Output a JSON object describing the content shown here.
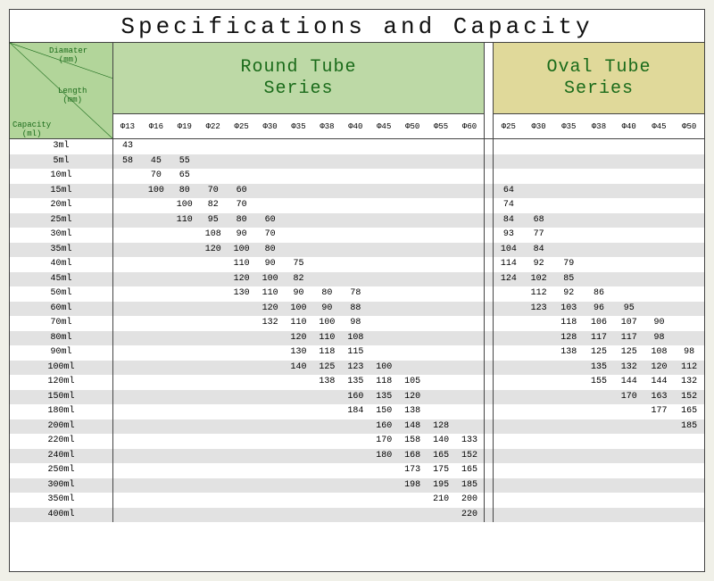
{
  "title": "Specifications and Capacity",
  "corner": {
    "diameter": "Diamater\n(mm)",
    "length": "Length\n(mm)",
    "capacity": "Capacity\n(ml)"
  },
  "round": {
    "title1": "Round Tube",
    "title2": "Series",
    "diameters": [
      "Φ13",
      "Φ16",
      "Φ19",
      "Φ22",
      "Φ25",
      "Φ30",
      "Φ35",
      "Φ38",
      "Φ40",
      "Φ45",
      "Φ50",
      "Φ55",
      "Φ60"
    ]
  },
  "oval": {
    "title1": "Oval Tube",
    "title2": "Series",
    "diameters": [
      "Φ25",
      "Φ30",
      "Φ35",
      "Φ38",
      "Φ40",
      "Φ45",
      "Φ50"
    ]
  },
  "capacities": [
    "3ml",
    "5ml",
    "10ml",
    "15ml",
    "20ml",
    "25ml",
    "30ml",
    "35ml",
    "40ml",
    "45ml",
    "50ml",
    "60ml",
    "70ml",
    "80ml",
    "90ml",
    "100ml",
    "120ml",
    "150ml",
    "180ml",
    "200ml",
    "220ml",
    "240ml",
    "250ml",
    "300ml",
    "350ml",
    "400ml"
  ],
  "round_data": [
    [
      "43",
      "",
      "",
      "",
      "",
      "",
      "",
      "",
      "",
      "",
      "",
      "",
      ""
    ],
    [
      "58",
      "45",
      "55",
      "",
      "",
      "",
      "",
      "",
      "",
      "",
      "",
      "",
      ""
    ],
    [
      "",
      "70",
      "65",
      "",
      "",
      "",
      "",
      "",
      "",
      "",
      "",
      "",
      ""
    ],
    [
      "",
      "100",
      "80",
      "70",
      "60",
      "",
      "",
      "",
      "",
      "",
      "",
      "",
      ""
    ],
    [
      "",
      "",
      "100",
      "82",
      "70",
      "",
      "",
      "",
      "",
      "",
      "",
      "",
      ""
    ],
    [
      "",
      "",
      "110",
      "95",
      "80",
      "60",
      "",
      "",
      "",
      "",
      "",
      "",
      ""
    ],
    [
      "",
      "",
      "",
      "108",
      "90",
      "70",
      "",
      "",
      "",
      "",
      "",
      "",
      ""
    ],
    [
      "",
      "",
      "",
      "120",
      "100",
      "80",
      "",
      "",
      "",
      "",
      "",
      "",
      ""
    ],
    [
      "",
      "",
      "",
      "",
      "110",
      "90",
      "75",
      "",
      "",
      "",
      "",
      "",
      ""
    ],
    [
      "",
      "",
      "",
      "",
      "120",
      "100",
      "82",
      "",
      "",
      "",
      "",
      "",
      ""
    ],
    [
      "",
      "",
      "",
      "",
      "130",
      "110",
      "90",
      "80",
      "78",
      "",
      "",
      "",
      ""
    ],
    [
      "",
      "",
      "",
      "",
      "",
      "120",
      "100",
      "90",
      "88",
      "",
      "",
      "",
      ""
    ],
    [
      "",
      "",
      "",
      "",
      "",
      "132",
      "110",
      "100",
      "98",
      "",
      "",
      "",
      ""
    ],
    [
      "",
      "",
      "",
      "",
      "",
      "",
      "120",
      "110",
      "108",
      "",
      "",
      "",
      ""
    ],
    [
      "",
      "",
      "",
      "",
      "",
      "",
      "130",
      "118",
      "115",
      "",
      "",
      "",
      ""
    ],
    [
      "",
      "",
      "",
      "",
      "",
      "",
      "140",
      "125",
      "123",
      "100",
      "",
      "",
      ""
    ],
    [
      "",
      "",
      "",
      "",
      "",
      "",
      "",
      "138",
      "135",
      "118",
      "105",
      "",
      ""
    ],
    [
      "",
      "",
      "",
      "",
      "",
      "",
      "",
      "",
      "160",
      "135",
      "120",
      "",
      ""
    ],
    [
      "",
      "",
      "",
      "",
      "",
      "",
      "",
      "",
      "184",
      "150",
      "138",
      "",
      ""
    ],
    [
      "",
      "",
      "",
      "",
      "",
      "",
      "",
      "",
      "",
      "160",
      "148",
      "128",
      ""
    ],
    [
      "",
      "",
      "",
      "",
      "",
      "",
      "",
      "",
      "",
      "170",
      "158",
      "140",
      "133"
    ],
    [
      "",
      "",
      "",
      "",
      "",
      "",
      "",
      "",
      "",
      "180",
      "168",
      "165",
      "152"
    ],
    [
      "",
      "",
      "",
      "",
      "",
      "",
      "",
      "",
      "",
      "",
      "173",
      "175",
      "165"
    ],
    [
      "",
      "",
      "",
      "",
      "",
      "",
      "",
      "",
      "",
      "",
      "198",
      "195",
      "185"
    ],
    [
      "",
      "",
      "",
      "",
      "",
      "",
      "",
      "",
      "",
      "",
      "",
      "210",
      "200"
    ],
    [
      "",
      "",
      "",
      "",
      "",
      "",
      "",
      "",
      "",
      "",
      "",
      "",
      "220"
    ]
  ],
  "oval_data": [
    [
      "",
      "",
      "",
      "",
      "",
      "",
      ""
    ],
    [
      "",
      "",
      "",
      "",
      "",
      "",
      ""
    ],
    [
      "",
      "",
      "",
      "",
      "",
      "",
      ""
    ],
    [
      "64",
      "",
      "",
      "",
      "",
      "",
      ""
    ],
    [
      "74",
      "",
      "",
      "",
      "",
      "",
      ""
    ],
    [
      "84",
      "68",
      "",
      "",
      "",
      "",
      ""
    ],
    [
      "93",
      "77",
      "",
      "",
      "",
      "",
      ""
    ],
    [
      "104",
      "84",
      "",
      "",
      "",
      "",
      ""
    ],
    [
      "114",
      "92",
      "79",
      "",
      "",
      "",
      ""
    ],
    [
      "124",
      "102",
      "85",
      "",
      "",
      "",
      ""
    ],
    [
      "",
      "112",
      "92",
      "86",
      "",
      "",
      ""
    ],
    [
      "",
      "123",
      "103",
      "96",
      "95",
      "",
      ""
    ],
    [
      "",
      "",
      "118",
      "106",
      "107",
      "90",
      ""
    ],
    [
      "",
      "",
      "128",
      "117",
      "117",
      "98",
      ""
    ],
    [
      "",
      "",
      "138",
      "125",
      "125",
      "108",
      "98"
    ],
    [
      "",
      "",
      "",
      "135",
      "132",
      "120",
      "112"
    ],
    [
      "",
      "",
      "",
      "155",
      "144",
      "144",
      "132"
    ],
    [
      "",
      "",
      "",
      "",
      "170",
      "163",
      "152"
    ],
    [
      "",
      "",
      "",
      "",
      "",
      "177",
      "165"
    ],
    [
      "",
      "",
      "",
      "",
      "",
      "",
      "185"
    ],
    [
      "",
      "",
      "",
      "",
      "",
      "",
      ""
    ],
    [
      "",
      "",
      "",
      "",
      "",
      "",
      ""
    ],
    [
      "",
      "",
      "",
      "",
      "",
      "",
      ""
    ],
    [
      "",
      "",
      "",
      "",
      "",
      "",
      ""
    ],
    [
      "",
      "",
      "",
      "",
      "",
      "",
      ""
    ],
    [
      "",
      "",
      "",
      "",
      "",
      "",
      ""
    ]
  ],
  "colors": {
    "round_header": "#bdd9a6",
    "oval_header": "#e0d99a",
    "corner_bg": "#b2d59a",
    "stripe": "#e2e2e2",
    "text_green": "#1a6b1a"
  }
}
